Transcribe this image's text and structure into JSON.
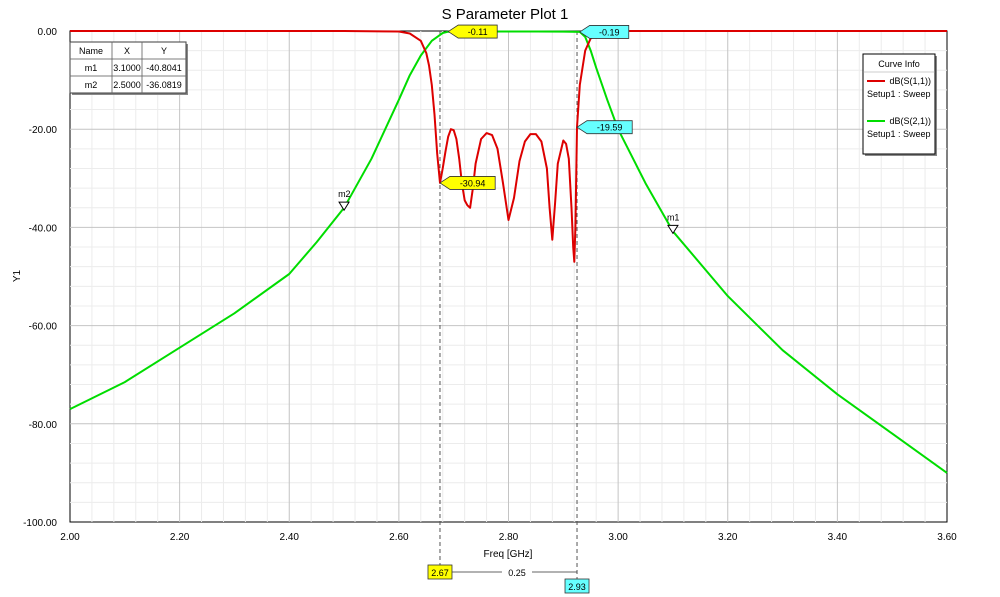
{
  "chart_data": {
    "type": "line",
    "title": "S Parameter Plot 1",
    "xlabel": "Freq [GHz]",
    "ylabel": "Y1",
    "xlim": [
      2.0,
      3.6
    ],
    "ylim": [
      -100,
      0
    ],
    "x_ticks": [
      "2.00",
      "2.20",
      "2.40",
      "2.60",
      "2.80",
      "3.00",
      "3.20",
      "3.40",
      "3.60"
    ],
    "y_ticks": [
      "0.00",
      "-20.00",
      "-40.00",
      "-60.00",
      "-80.00",
      "-100.00"
    ],
    "grid": true,
    "legend": {
      "title": "Curve Info",
      "placement": "top-right",
      "entries": [
        {
          "name": "dB(S(1,1))",
          "sub": "Setup1 : Sweep",
          "color": "#dd0000"
        },
        {
          "name": "dB(S(2,1))",
          "sub": "Setup1 : Sweep",
          "color": "#00dd00"
        }
      ]
    },
    "series": [
      {
        "name": "dB(S(2,1))",
        "color": "#00dd00",
        "x": [
          2.0,
          2.1,
          2.2,
          2.3,
          2.4,
          2.45,
          2.5,
          2.55,
          2.6,
          2.62,
          2.64,
          2.66,
          2.67,
          2.68,
          2.69,
          2.7,
          2.75,
          2.8,
          2.85,
          2.9,
          2.93,
          2.94,
          2.95,
          2.96,
          2.98,
          3.0,
          3.05,
          3.1,
          3.2,
          3.3,
          3.4,
          3.5,
          3.6
        ],
        "y": [
          -77,
          -71.5,
          -64.5,
          -57.5,
          -49.5,
          -43,
          -36,
          -26,
          -14,
          -9,
          -5,
          -2,
          -1.2,
          -0.4,
          -0.15,
          -0.11,
          -0.1,
          -0.1,
          -0.1,
          -0.12,
          -0.19,
          -1.2,
          -4,
          -7.5,
          -14,
          -20,
          -31,
          -40.8,
          -54,
          -65,
          -74,
          -82,
          -90
        ]
      },
      {
        "name": "dB(S(1,1))",
        "color": "#dd0000",
        "x": [
          2.0,
          2.5,
          2.6,
          2.62,
          2.64,
          2.65,
          2.655,
          2.66,
          2.665,
          2.67,
          2.675,
          2.68,
          2.685,
          2.69,
          2.695,
          2.7,
          2.705,
          2.71,
          2.715,
          2.72,
          2.725,
          2.73,
          2.735,
          2.74,
          2.75,
          2.76,
          2.77,
          2.78,
          2.79,
          2.8,
          2.81,
          2.82,
          2.83,
          2.84,
          2.85,
          2.86,
          2.87,
          2.875,
          2.88,
          2.885,
          2.89,
          2.9,
          2.905,
          2.91,
          2.915,
          2.918,
          2.92,
          2.922,
          2.925,
          2.93,
          2.94,
          2.95,
          2.97,
          3.0,
          3.6
        ],
        "y": [
          0,
          0,
          -0.1,
          -0.5,
          -2,
          -4.5,
          -7,
          -11,
          -17,
          -25,
          -30.94,
          -28,
          -24.5,
          -21.5,
          -20,
          -20.2,
          -22,
          -26,
          -31,
          -34.5,
          -35.5,
          -36,
          -32,
          -27,
          -22,
          -20.8,
          -21.2,
          -24,
          -31,
          -38.5,
          -34,
          -26.5,
          -22.5,
          -21,
          -21,
          -22.5,
          -28,
          -36,
          -42.5,
          -35,
          -27,
          -22.3,
          -23,
          -26,
          -36,
          -44,
          -47,
          -40,
          -19.59,
          -11,
          -4,
          -1.5,
          -0.3,
          0,
          0
        ]
      }
    ],
    "markers": [
      {
        "name": "m1",
        "x": 3.1,
        "y": -40.8041
      },
      {
        "name": "m2",
        "x": 2.5,
        "y": -36.0819
      }
    ],
    "marker_table": {
      "headers": [
        "Name",
        "X",
        "Y"
      ],
      "rows": [
        [
          "m1",
          "3.1000",
          "-40.8041"
        ],
        [
          "m2",
          "2.5000",
          "-36.0819"
        ]
      ]
    },
    "annotations": [
      {
        "text": "-0.11",
        "x": 2.69,
        "y": -0.11,
        "color": "#ffff00",
        "side": "right"
      },
      {
        "text": "-0.19",
        "x": 2.93,
        "y": -0.19,
        "color": "#66ffff",
        "side": "right"
      },
      {
        "text": "-30.94",
        "x": 2.675,
        "y": -30.94,
        "color": "#ffff00",
        "side": "right"
      },
      {
        "text": "-19.59",
        "x": 2.925,
        "y": -19.59,
        "color": "#66ffff",
        "side": "right"
      }
    ],
    "cursors": {
      "x1": 2.675,
      "x2": 2.925,
      "label1": "2.67",
      "label2": "2.93",
      "delta": "0.25",
      "color1": "#ffff00",
      "color2": "#66ffff"
    }
  }
}
